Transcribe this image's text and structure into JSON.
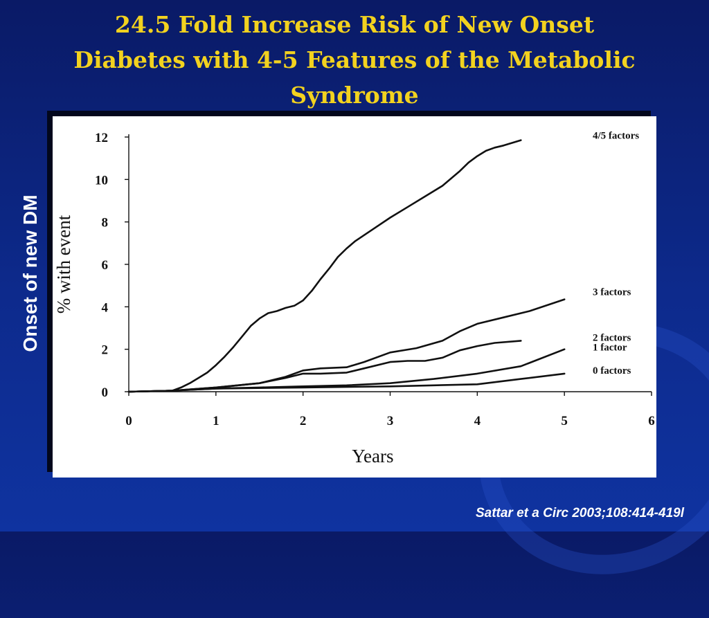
{
  "slide": {
    "title_lines": [
      "24.5 Fold Increase Risk of New Onset",
      "Diabetes with 4-5 Features of the Metabolic",
      "Syndrome"
    ],
    "side_label": "Onset of new DM",
    "citation": "Sattar et a Circ 2003;108:414-419l",
    "colors": {
      "title": "#f2d21f",
      "background": "#0d2a8c",
      "line": "#111111"
    }
  },
  "chart_data": {
    "type": "line",
    "xlabel": "Years",
    "ylabel": "% with event",
    "xlim": [
      0,
      6
    ],
    "ylim": [
      0,
      12
    ],
    "x_ticks": [
      "0",
      "1",
      "2",
      "3",
      "4",
      "5",
      "6"
    ],
    "y_ticks": [
      "0",
      "2",
      "4",
      "6",
      "8",
      "10",
      "12"
    ],
    "legend": "series labels at line ends (right)",
    "series": [
      {
        "name": "4/5 factors",
        "x": [
          0,
          0.5,
          0.6,
          0.7,
          0.8,
          0.9,
          1.0,
          1.1,
          1.2,
          1.3,
          1.4,
          1.5,
          1.6,
          1.7,
          1.8,
          1.9,
          2.0,
          2.1,
          2.2,
          2.3,
          2.4,
          2.5,
          2.6,
          2.8,
          3.0,
          3.2,
          3.4,
          3.6,
          3.8,
          3.9,
          4.0,
          4.1,
          4.2,
          4.3,
          4.5
        ],
        "y": [
          0,
          0.05,
          0.2,
          0.4,
          0.65,
          0.9,
          1.25,
          1.65,
          2.1,
          2.6,
          3.1,
          3.45,
          3.7,
          3.8,
          3.95,
          4.05,
          4.3,
          4.75,
          5.3,
          5.8,
          6.35,
          6.75,
          7.1,
          7.65,
          8.2,
          8.7,
          9.2,
          9.7,
          10.4,
          10.8,
          11.1,
          11.35,
          11.5,
          11.6,
          11.85
        ]
      },
      {
        "name": "3 factors",
        "x": [
          0,
          0.5,
          1.0,
          1.5,
          1.8,
          2.0,
          2.2,
          2.5,
          2.7,
          3.0,
          3.3,
          3.6,
          3.8,
          4.0,
          4.3,
          4.6,
          5.0
        ],
        "y": [
          0,
          0.05,
          0.2,
          0.4,
          0.7,
          1.0,
          1.1,
          1.15,
          1.4,
          1.85,
          2.05,
          2.4,
          2.85,
          3.2,
          3.5,
          3.8,
          4.35
        ]
      },
      {
        "name": "2 factors",
        "x": [
          0,
          0.5,
          1.0,
          1.5,
          1.8,
          2.0,
          2.2,
          2.5,
          2.7,
          3.0,
          3.2,
          3.4,
          3.6,
          3.8,
          4.0,
          4.2,
          4.5
        ],
        "y": [
          0,
          0.05,
          0.2,
          0.4,
          0.65,
          0.85,
          0.85,
          0.9,
          1.1,
          1.4,
          1.45,
          1.45,
          1.6,
          1.95,
          2.15,
          2.3,
          2.4
        ]
      },
      {
        "name": "1 factor",
        "x": [
          0,
          0.5,
          1.0,
          1.5,
          2.0,
          2.5,
          3.0,
          3.5,
          4.0,
          4.5,
          5.0
        ],
        "y": [
          0,
          0.05,
          0.15,
          0.2,
          0.25,
          0.3,
          0.4,
          0.6,
          0.85,
          1.2,
          2.0
        ]
      },
      {
        "name": "0 factors",
        "x": [
          0,
          0.5,
          1.0,
          2.0,
          3.0,
          3.5,
          4.0,
          4.5,
          5.0
        ],
        "y": [
          0,
          0.05,
          0.15,
          0.2,
          0.25,
          0.3,
          0.35,
          0.6,
          0.85
        ]
      }
    ]
  }
}
